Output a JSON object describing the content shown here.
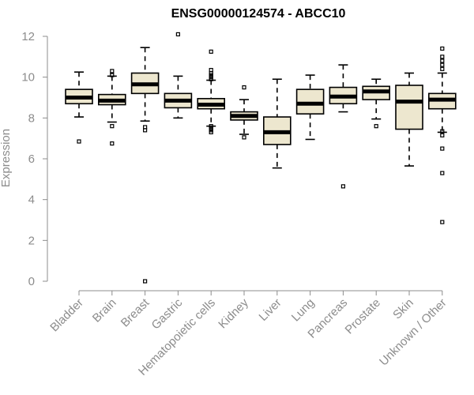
{
  "chart_data": {
    "type": "boxplot",
    "title": "ENSG00000124574 - ABCC10",
    "xlabel": "",
    "ylabel": "Expression",
    "ylim": [
      0,
      12
    ],
    "yticks": [
      0,
      2,
      4,
      6,
      8,
      10,
      12
    ],
    "grid": false,
    "box_color": "#ede7cf",
    "categories": [
      "Bladder",
      "Brain",
      "Breast",
      "Gastric",
      "Hematopoietic cells",
      "Kidney",
      "Liver",
      "Lung",
      "Pancreas",
      "Prostate",
      "Skin",
      "Unknown / Other"
    ],
    "boxes": [
      {
        "low": 8.05,
        "q1": 8.7,
        "median": 9.0,
        "q3": 9.4,
        "high": 10.25,
        "outliers": [
          6.85
        ]
      },
      {
        "low": 7.8,
        "q1": 8.65,
        "median": 8.85,
        "q3": 9.15,
        "high": 10.05,
        "outliers": [
          6.75,
          7.6,
          10.1,
          10.3
        ]
      },
      {
        "low": 7.85,
        "q1": 9.2,
        "median": 9.65,
        "q3": 10.2,
        "high": 11.45,
        "outliers": [
          0.0,
          7.4,
          7.55
        ]
      },
      {
        "low": 8.0,
        "q1": 8.5,
        "median": 8.85,
        "q3": 9.2,
        "high": 10.05,
        "outliers": [
          12.1
        ]
      },
      {
        "low": 7.6,
        "q1": 8.45,
        "median": 8.65,
        "q3": 8.95,
        "high": 9.85,
        "outliers": [
          7.3,
          7.4,
          7.5,
          7.6,
          9.9,
          10.0,
          10.1,
          10.2,
          10.35,
          11.25
        ]
      },
      {
        "low": 7.2,
        "q1": 7.9,
        "median": 8.1,
        "q3": 8.3,
        "high": 8.9,
        "outliers": [
          7.05,
          9.5
        ]
      },
      {
        "low": 5.55,
        "q1": 6.7,
        "median": 7.3,
        "q3": 8.05,
        "high": 9.9,
        "outliers": []
      },
      {
        "low": 6.95,
        "q1": 8.2,
        "median": 8.7,
        "q3": 9.4,
        "high": 10.1,
        "outliers": []
      },
      {
        "low": 8.3,
        "q1": 8.7,
        "median": 9.05,
        "q3": 9.5,
        "high": 10.6,
        "outliers": [
          4.65
        ]
      },
      {
        "low": 7.95,
        "q1": 8.9,
        "median": 9.3,
        "q3": 9.55,
        "high": 9.9,
        "outliers": [
          7.6
        ]
      },
      {
        "low": 5.65,
        "q1": 7.45,
        "median": 8.8,
        "q3": 9.6,
        "high": 10.2,
        "outliers": []
      },
      {
        "low": 7.3,
        "q1": 8.45,
        "median": 8.9,
        "q3": 9.2,
        "high": 10.2,
        "outliers": [
          2.9,
          5.3,
          6.5,
          7.15,
          7.35,
          10.4,
          10.6,
          10.8,
          11.0,
          11.4
        ]
      }
    ]
  }
}
